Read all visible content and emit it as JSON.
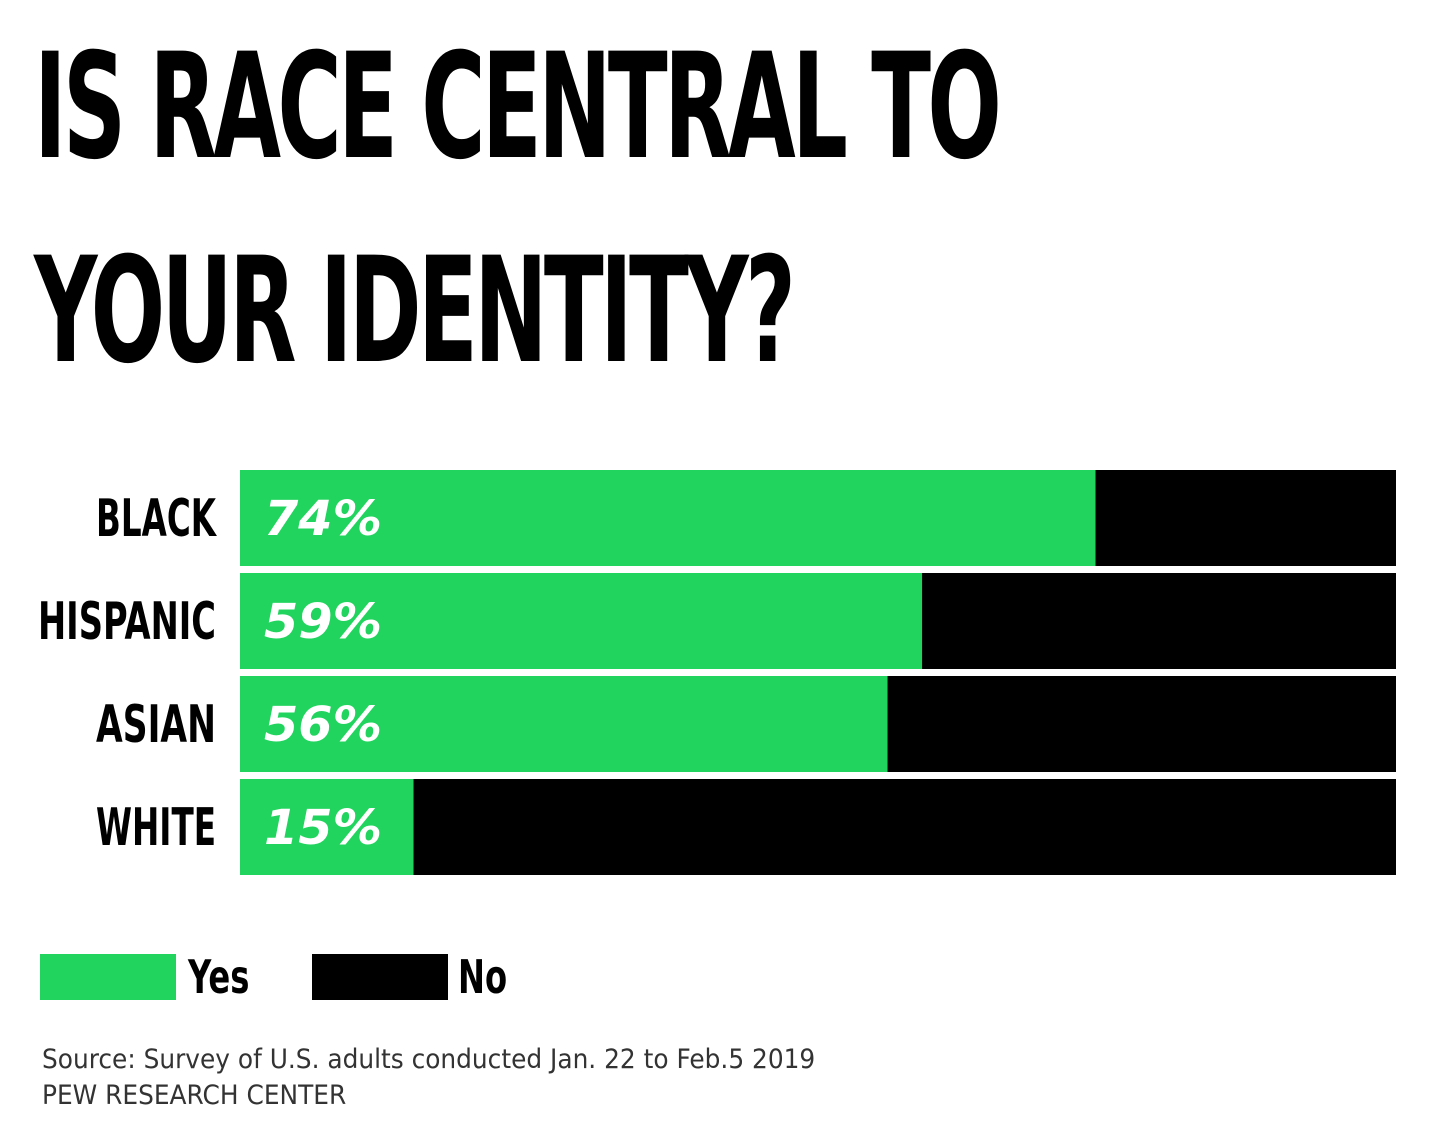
{
  "title": {
    "line1": "IS RACE CENTRAL TO",
    "line2": "YOUR IDENTITY?"
  },
  "colors": {
    "yes": "#21d45e",
    "no": "#000000"
  },
  "chart_data": {
    "type": "bar",
    "orientation": "horizontal",
    "stacked": true,
    "categories": [
      "BLACK",
      "HISPANIC",
      "ASIAN",
      "WHITE"
    ],
    "series": [
      {
        "name": "Yes",
        "values": [
          74,
          59,
          56,
          15
        ]
      },
      {
        "name": "No",
        "values": [
          26,
          41,
          44,
          85
        ]
      }
    ],
    "value_labels": [
      "74%",
      "59%",
      "56%",
      "15%"
    ],
    "xlim": [
      0,
      100
    ],
    "grid": false,
    "legend_position": "bottom-left"
  },
  "legend": {
    "yes_label": "Yes",
    "no_label": "No"
  },
  "footer": {
    "source": "Source: Survey of U.S. adults conducted Jan. 22 to Feb.5 2019",
    "org": "PEW RESEARCH CENTER"
  }
}
